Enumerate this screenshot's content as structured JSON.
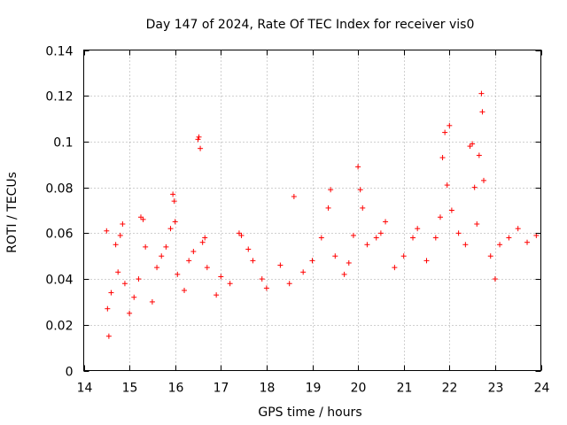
{
  "chart_data": {
    "type": "scatter",
    "title": "Day 147 of 2024, Rate Of TEC Index for receiver vis0",
    "xlabel": "GPS time / hours",
    "ylabel": "ROTI / TECUs",
    "xlim": [
      14,
      24
    ],
    "ylim": [
      0,
      0.14
    ],
    "x_ticks": [
      "14",
      "15",
      "16",
      "17",
      "18",
      "19",
      "20",
      "21",
      "22",
      "23",
      "24"
    ],
    "y_ticks": [
      "0",
      "0.02",
      "0.04",
      "0.06",
      "0.08",
      "0.1",
      "0.12",
      "0.14"
    ],
    "grid": true,
    "marker": "+",
    "marker_color": "#ff0000",
    "series": [
      {
        "name": "ROTI",
        "points": [
          [
            14.5,
            0.061
          ],
          [
            14.52,
            0.027
          ],
          [
            14.55,
            0.015
          ],
          [
            14.6,
            0.034
          ],
          [
            14.7,
            0.055
          ],
          [
            14.75,
            0.043
          ],
          [
            14.8,
            0.059
          ],
          [
            14.85,
            0.064
          ],
          [
            14.9,
            0.038
          ],
          [
            15.0,
            0.025
          ],
          [
            15.1,
            0.032
          ],
          [
            15.2,
            0.04
          ],
          [
            15.25,
            0.067
          ],
          [
            15.3,
            0.066
          ],
          [
            15.35,
            0.054
          ],
          [
            15.5,
            0.03
          ],
          [
            15.6,
            0.045
          ],
          [
            15.7,
            0.05
          ],
          [
            15.8,
            0.054
          ],
          [
            15.9,
            0.062
          ],
          [
            15.95,
            0.077
          ],
          [
            15.98,
            0.074
          ],
          [
            16.0,
            0.065
          ],
          [
            16.05,
            0.042
          ],
          [
            16.2,
            0.035
          ],
          [
            16.3,
            0.048
          ],
          [
            16.4,
            0.052
          ],
          [
            16.5,
            0.101
          ],
          [
            16.52,
            0.102
          ],
          [
            16.55,
            0.097
          ],
          [
            16.6,
            0.056
          ],
          [
            16.65,
            0.058
          ],
          [
            16.7,
            0.045
          ],
          [
            16.9,
            0.033
          ],
          [
            17.0,
            0.041
          ],
          [
            17.2,
            0.038
          ],
          [
            17.4,
            0.06
          ],
          [
            17.45,
            0.059
          ],
          [
            17.6,
            0.053
          ],
          [
            17.7,
            0.048
          ],
          [
            17.9,
            0.04
          ],
          [
            18.0,
            0.036
          ],
          [
            18.3,
            0.046
          ],
          [
            18.5,
            0.038
          ],
          [
            18.6,
            0.076
          ],
          [
            18.8,
            0.043
          ],
          [
            19.0,
            0.048
          ],
          [
            19.2,
            0.058
          ],
          [
            19.35,
            0.071
          ],
          [
            19.4,
            0.079
          ],
          [
            19.5,
            0.05
          ],
          [
            19.7,
            0.042
          ],
          [
            19.8,
            0.047
          ],
          [
            19.9,
            0.059
          ],
          [
            20.0,
            0.089
          ],
          [
            20.05,
            0.079
          ],
          [
            20.1,
            0.071
          ],
          [
            20.2,
            0.055
          ],
          [
            20.4,
            0.058
          ],
          [
            20.5,
            0.06
          ],
          [
            20.6,
            0.065
          ],
          [
            20.8,
            0.045
          ],
          [
            21.0,
            0.05
          ],
          [
            21.2,
            0.058
          ],
          [
            21.3,
            0.062
          ],
          [
            21.5,
            0.048
          ],
          [
            21.7,
            0.058
          ],
          [
            21.8,
            0.067
          ],
          [
            21.85,
            0.093
          ],
          [
            21.9,
            0.104
          ],
          [
            21.95,
            0.081
          ],
          [
            22.0,
            0.107
          ],
          [
            22.05,
            0.07
          ],
          [
            22.2,
            0.06
          ],
          [
            22.35,
            0.055
          ],
          [
            22.45,
            0.098
          ],
          [
            22.5,
            0.099
          ],
          [
            22.55,
            0.08
          ],
          [
            22.6,
            0.064
          ],
          [
            22.65,
            0.094
          ],
          [
            22.7,
            0.121
          ],
          [
            22.72,
            0.113
          ],
          [
            22.75,
            0.083
          ],
          [
            22.9,
            0.05
          ],
          [
            23.0,
            0.04
          ],
          [
            23.1,
            0.055
          ],
          [
            23.3,
            0.058
          ],
          [
            23.5,
            0.062
          ],
          [
            23.7,
            0.056
          ],
          [
            23.9,
            0.059
          ]
        ]
      }
    ]
  }
}
